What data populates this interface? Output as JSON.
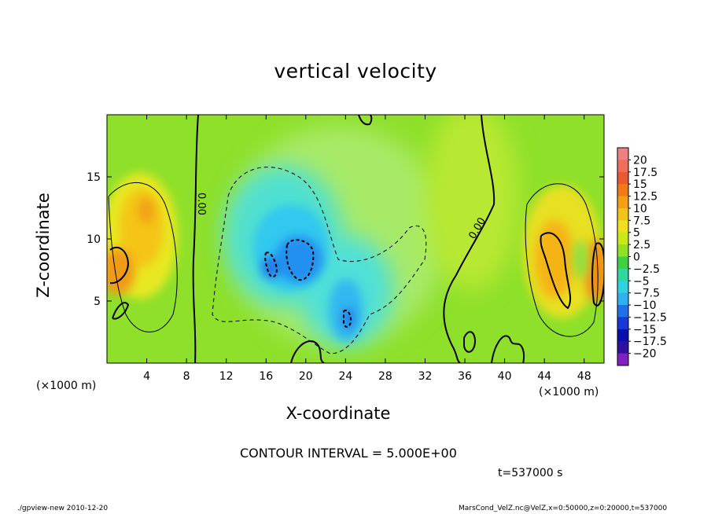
{
  "title": "vertical velocity",
  "xlabel": "X-coordinate",
  "ylabel": "Z-coordinate",
  "x_unit_left": "(×1000 m)",
  "x_unit_right": "(×1000 m)",
  "contour_interval": "CONTOUR INTERVAL = 5.000E+00",
  "time_label": "t=537000 s",
  "footer_left": "./gpview-new  2010-12-20",
  "footer_right": "MarsCond_VelZ.nc@VelZ,x=0:50000,z=0:20000,t=537000",
  "contour_labels": [
    "0.00",
    "0.00"
  ],
  "chart_data": {
    "type": "heatmap",
    "title": "vertical velocity",
    "xlabel": "X-coordinate",
    "ylabel": "Z-coordinate",
    "xlim": [
      0,
      50
    ],
    "ylim": [
      0,
      20
    ],
    "x_ticks": [
      4,
      8,
      12,
      16,
      20,
      24,
      28,
      32,
      36,
      40,
      44,
      48
    ],
    "y_ticks": [
      5,
      10,
      15
    ],
    "colorbar": {
      "levels": [
        "20",
        "17.5",
        "15",
        "12.5",
        "10",
        "7.5",
        "5",
        "2.5",
        "0",
        "−2.5",
        "−5",
        "−7.5",
        "−10",
        "−12.5",
        "−15",
        "−17.5",
        "−20"
      ],
      "colors": [
        "#f08080",
        "#ee6e5a",
        "#ec5a30",
        "#f07a18",
        "#f5a010",
        "#f0c418",
        "#f0e020",
        "#c8e818",
        "#90e028",
        "#40d040",
        "#30d8a0",
        "#30d0e0",
        "#30b0f0",
        "#2070e8",
        "#1838d8",
        "#0810b0",
        "#3010a0",
        "#8020c0"
      ]
    },
    "features": [
      {
        "kind": "updraft",
        "x": 1,
        "z": 8,
        "peak": 12
      },
      {
        "kind": "updraft",
        "x": 4,
        "z": 12,
        "peak": 10
      },
      {
        "kind": "downdraft",
        "x": 19,
        "z": 8,
        "peak": -12
      },
      {
        "kind": "downdraft",
        "x": 24,
        "z": 4,
        "peak": -10
      },
      {
        "kind": "updraft",
        "x": 45,
        "z": 9,
        "peak": 12
      },
      {
        "kind": "updraft",
        "x": 49,
        "z": 8,
        "peak": 10
      }
    ]
  }
}
